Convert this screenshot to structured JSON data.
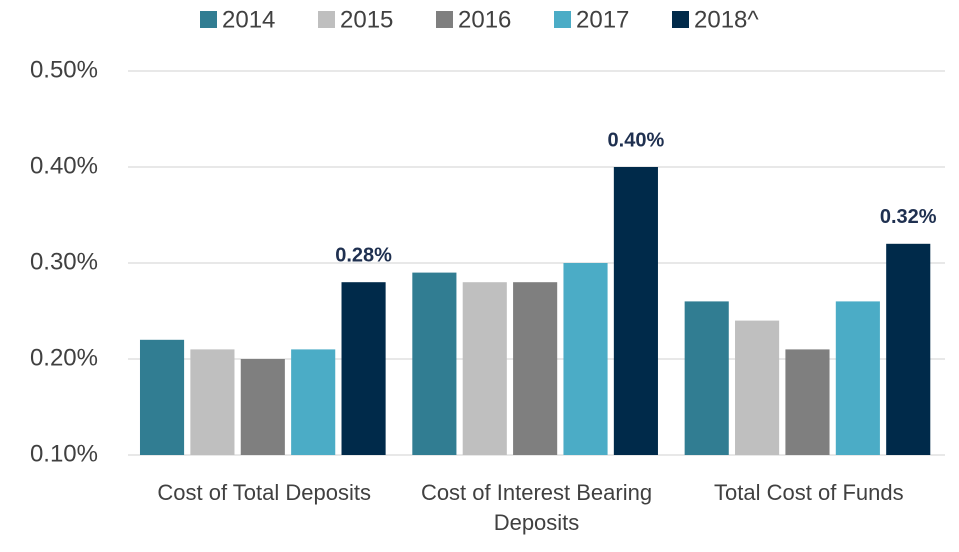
{
  "chart_data": {
    "type": "bar",
    "categories": [
      "Cost of Total Deposits",
      "Cost of Interest Bearing Deposits",
      "Total Cost of Funds"
    ],
    "series": [
      {
        "name": "2014",
        "color": "#317d92",
        "values": [
          0.22,
          0.29,
          0.26
        ]
      },
      {
        "name": "2015",
        "color": "#bfbfbf",
        "values": [
          0.21,
          0.28,
          0.24
        ]
      },
      {
        "name": "2016",
        "color": "#7f7f7f",
        "values": [
          0.2,
          0.28,
          0.21
        ]
      },
      {
        "name": "2017",
        "color": "#4bacc6",
        "values": [
          0.21,
          0.3,
          0.26
        ]
      },
      {
        "name": "2018^",
        "color": "#002a4a",
        "values": [
          0.28,
          0.4,
          0.32
        ],
        "value_labels": [
          "0.28%",
          "0.40%",
          "0.32%"
        ]
      }
    ],
    "ylim": [
      0.1,
      0.5
    ],
    "yticks": [
      {
        "value": 0.1,
        "label": "0.10%"
      },
      {
        "value": 0.2,
        "label": "0.20%"
      },
      {
        "value": 0.3,
        "label": "0.30%"
      },
      {
        "value": 0.4,
        "label": "0.40%"
      },
      {
        "value": 0.5,
        "label": "0.50%"
      }
    ],
    "grid": true,
    "legend": "top"
  }
}
